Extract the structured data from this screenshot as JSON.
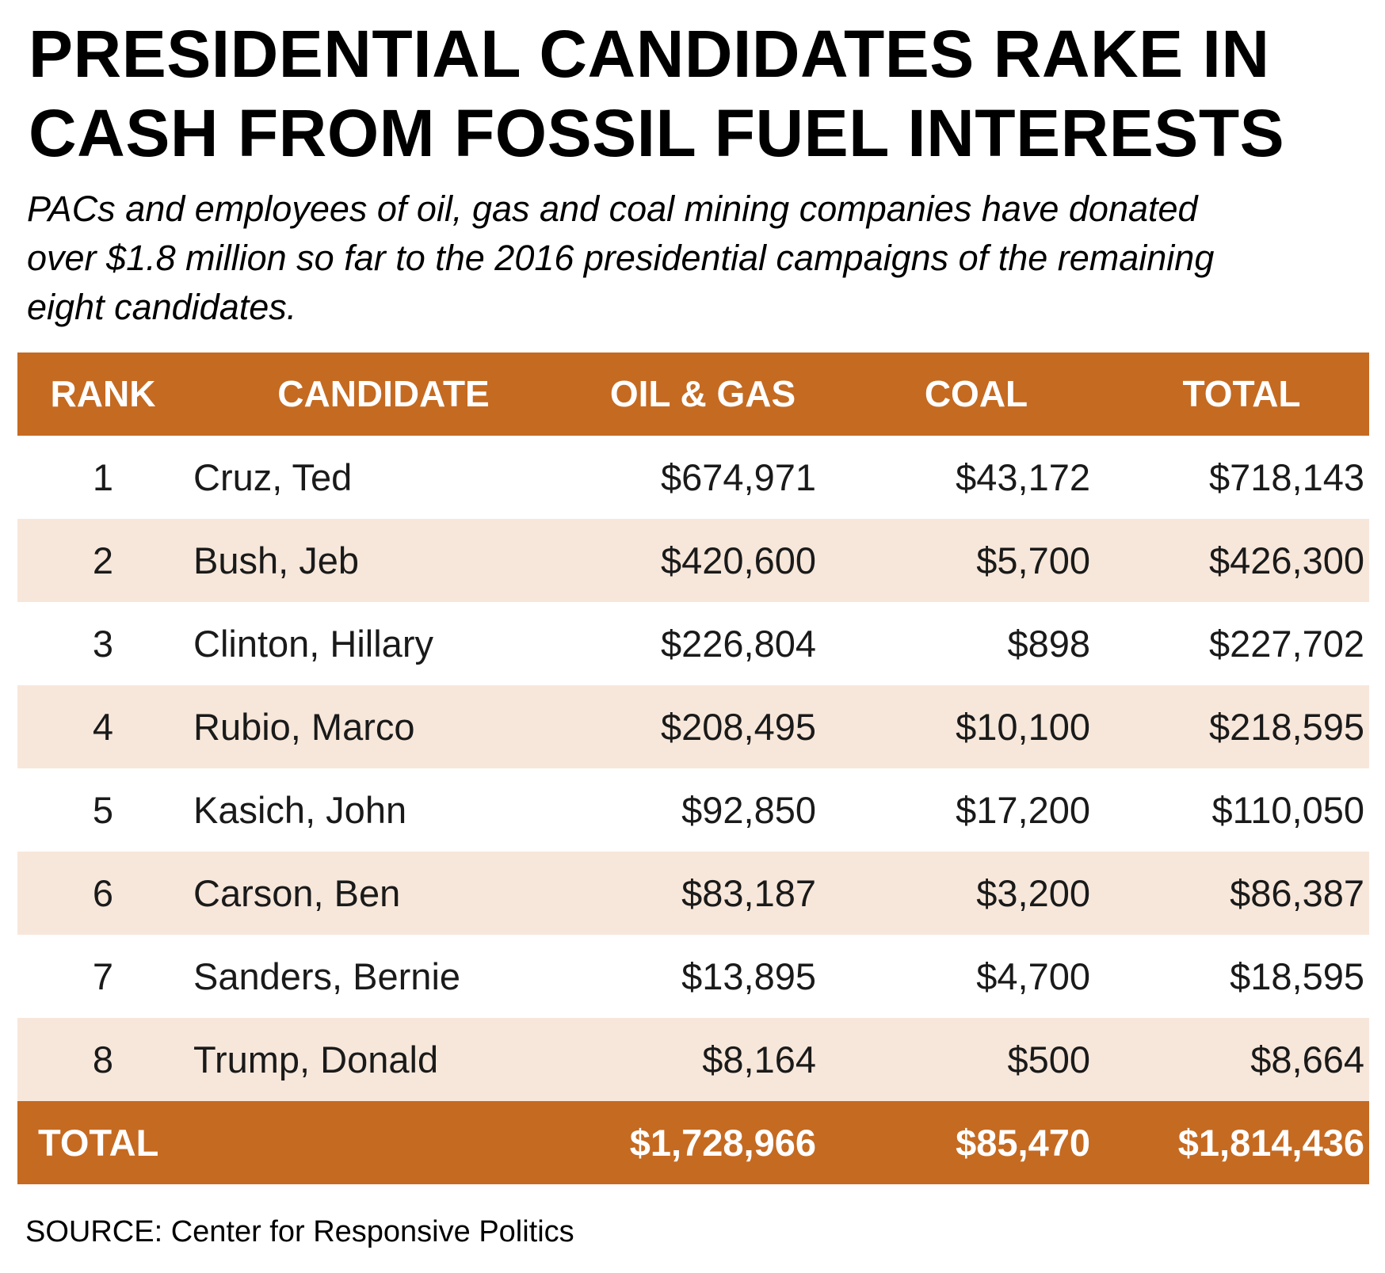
{
  "title_lines": [
    "PRESIDENTIAL CANDIDATES RAKE IN",
    "CASH FROM FOSSIL FUEL INTERESTS"
  ],
  "subtitle_lines": [
    "PACs and employees of oil, gas and coal mining companies have donated",
    "over $1.8 million so far to the 2016 presidential campaigns of the remaining",
    "eight candidates."
  ],
  "colors": {
    "header_bg": "#c56a21",
    "stripe_bg": "#f7e7da",
    "header_text": "#ffffff"
  },
  "chart_data": {
    "type": "table",
    "columns": [
      "RANK",
      "CANDIDATE",
      "OIL & GAS",
      "COAL",
      "TOTAL"
    ],
    "rows": [
      {
        "rank": "1",
        "candidate": "Cruz, Ted",
        "oil_gas": "$674,971",
        "coal": "$43,172",
        "total": "$718,143"
      },
      {
        "rank": "2",
        "candidate": "Bush, Jeb",
        "oil_gas": "$420,600",
        "coal": "$5,700",
        "total": "$426,300"
      },
      {
        "rank": "3",
        "candidate": "Clinton, Hillary",
        "oil_gas": "$226,804",
        "coal": "$898",
        "total": "$227,702"
      },
      {
        "rank": "4",
        "candidate": "Rubio, Marco",
        "oil_gas": "$208,495",
        "coal": "$10,100",
        "total": "$218,595"
      },
      {
        "rank": "5",
        "candidate": "Kasich, John",
        "oil_gas": "$92,850",
        "coal": "$17,200",
        "total": "$110,050"
      },
      {
        "rank": "6",
        "candidate": "Carson, Ben",
        "oil_gas": "$83,187",
        "coal": "$3,200",
        "total": "$86,387"
      },
      {
        "rank": "7",
        "candidate": "Sanders, Bernie",
        "oil_gas": "$13,895",
        "coal": "$4,700",
        "total": "$18,595"
      },
      {
        "rank": "8",
        "candidate": "Trump, Donald",
        "oil_gas": "$8,164",
        "coal": "$500",
        "total": "$8,664"
      }
    ],
    "totals": {
      "label": "TOTAL",
      "oil_gas": "$1,728,966",
      "coal": "$85,470",
      "total": "$1,814,436"
    }
  },
  "source": "SOURCE: Center for Responsive Politics"
}
